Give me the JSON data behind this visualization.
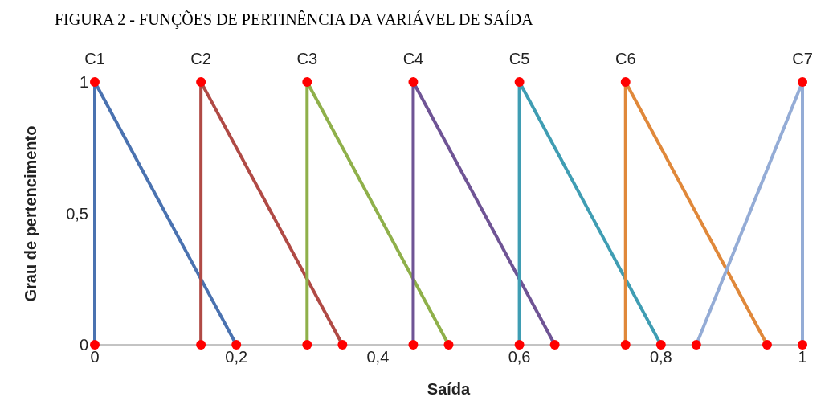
{
  "chart_data": {
    "type": "line",
    "title": "FIGURA 2 - FUNÇÕES DE PERTINÊNCIA DA VARIÁVEL DE SAÍDA",
    "xlabel": "Saída",
    "ylabel": "Grau de pertencimento",
    "xlim": [
      0,
      1
    ],
    "xticks": [
      0,
      {
        "value": 0.2,
        "label": "0,2"
      },
      {
        "value": 0.4,
        "label": "0,4"
      },
      {
        "value": 0.6,
        "label": "0,6"
      },
      {
        "value": 0.8,
        "label": "0,8"
      },
      1
    ],
    "ylim": [
      0,
      1
    ],
    "yticks": [
      0,
      {
        "value": 0.5,
        "label": "0,5"
      },
      1
    ],
    "grid": false,
    "legend": false,
    "marker": "none",
    "line_style": "solid",
    "series": [
      {
        "name": "C1",
        "color": "#4a72b0",
        "x": [
          0,
          0,
          0.2
        ],
        "values": [
          0,
          1,
          0
        ]
      },
      {
        "name": "C2",
        "color": "#b04a45",
        "x": [
          0.15,
          0.15,
          0.35
        ],
        "values": [
          0,
          1,
          0
        ]
      },
      {
        "name": "C3",
        "color": "#8fb04a",
        "x": [
          0.3,
          0.3,
          0.5
        ],
        "values": [
          0,
          1,
          0
        ]
      },
      {
        "name": "C4",
        "color": "#6f5495",
        "x": [
          0.45,
          0.45,
          0.65
        ],
        "values": [
          0,
          1,
          0
        ]
      },
      {
        "name": "C5",
        "color": "#3f9db3",
        "x": [
          0.6,
          0.6,
          0.8
        ],
        "values": [
          0,
          1,
          0
        ]
      },
      {
        "name": "C6",
        "color": "#e0883a",
        "x": [
          0.75,
          0.75,
          0.95
        ],
        "values": [
          0,
          1,
          0
        ]
      },
      {
        "name": "C7",
        "color": "#94acd6",
        "x": [
          0.85,
          1,
          1
        ],
        "values": [
          0,
          1,
          0
        ]
      },
      {
        "type": "scatter",
        "color": "#ff0000",
        "marker": "circle",
        "x": [
          0,
          0,
          0.2,
          0.15,
          0.15,
          0.35,
          0.3,
          0.3,
          0.5,
          0.45,
          0.45,
          0.65,
          0.6,
          0.6,
          0.8,
          0.75,
          0.75,
          0.95,
          0.85,
          1,
          1
        ],
        "values": [
          0,
          1,
          0,
          0,
          1,
          0,
          0,
          1,
          0,
          0,
          1,
          0,
          0,
          1,
          0,
          0,
          1,
          0,
          0,
          1,
          0
        ]
      }
    ]
  }
}
